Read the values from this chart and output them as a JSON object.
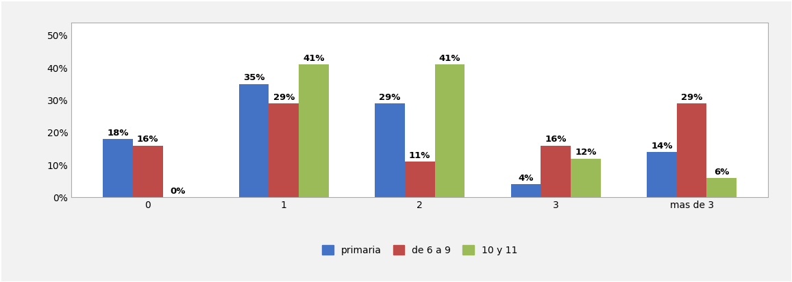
{
  "categories": [
    "0",
    "1",
    "2",
    "3",
    "mas de 3"
  ],
  "series": {
    "primaria": [
      18,
      35,
      29,
      4,
      14
    ],
    "de 6 a 9": [
      16,
      29,
      11,
      16,
      29
    ],
    "10 y 11": [
      0,
      41,
      41,
      12,
      6
    ]
  },
  "colors": {
    "primaria": "#4472C4",
    "de 6 a 9": "#BE4B48",
    "10 y 11": "#9BBB59"
  },
  "ylim": [
    0,
    54
  ],
  "yticks": [
    0,
    10,
    20,
    30,
    40,
    50
  ],
  "ytick_labels": [
    "0%",
    "10%",
    "20%",
    "30%",
    "40%",
    "50%"
  ],
  "legend_labels": [
    "primaria",
    "de 6 a 9",
    "10 y 11"
  ],
  "bar_width": 0.22,
  "figsize": [
    11.56,
    4.12
  ],
  "dpi": 100,
  "background_color": "#F2F2F2",
  "plot_bg_color": "#FFFFFF",
  "label_fontsize": 9.5,
  "tick_fontsize": 10,
  "legend_fontsize": 10,
  "border_color": "#AAAAAA"
}
